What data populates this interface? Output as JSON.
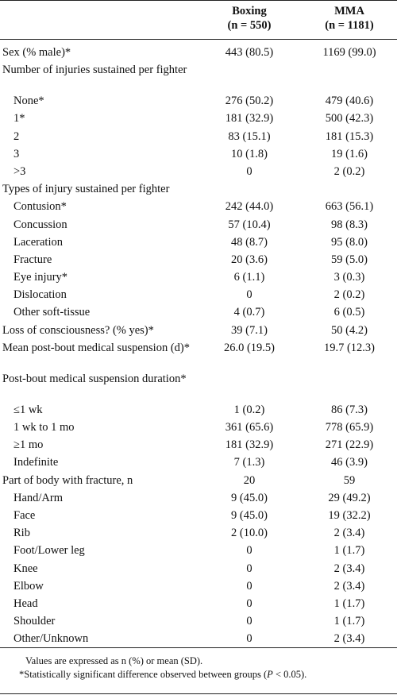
{
  "header": {
    "col1_line1": "Boxing",
    "col1_line2": "(n = 550)",
    "col2_line1": "MMA",
    "col2_line2": "(n = 1181)"
  },
  "rows": [
    {
      "label": "Sex (% male)*",
      "boxing": "443 (80.5)",
      "mma": "1169 (99.0)",
      "indent": false
    },
    {
      "label": "Number of injuries sustained per fighter",
      "boxing": "",
      "mma": "",
      "indent": false
    },
    {
      "label": "None*",
      "boxing": "276 (50.2)",
      "mma": "479 (40.6)",
      "indent": true
    },
    {
      "label": "1*",
      "boxing": "181 (32.9)",
      "mma": "500 (42.3)",
      "indent": true
    },
    {
      "label": "2",
      "boxing": "83 (15.1)",
      "mma": "181 (15.3)",
      "indent": true
    },
    {
      "label": "3",
      "boxing": "10 (1.8)",
      "mma": "19 (1.6)",
      "indent": true
    },
    {
      "label": ">3",
      "boxing": "0",
      "mma": "2 (0.2)",
      "indent": true
    },
    {
      "label": "Types of injury sustained per fighter",
      "boxing": "",
      "mma": "",
      "indent": false
    },
    {
      "label": "Contusion*",
      "boxing": "242 (44.0)",
      "mma": "663 (56.1)",
      "indent": true
    },
    {
      "label": "Concussion",
      "boxing": "57 (10.4)",
      "mma": "98 (8.3)",
      "indent": true
    },
    {
      "label": "Laceration",
      "boxing": "48 (8.7)",
      "mma": "95 (8.0)",
      "indent": true
    },
    {
      "label": "Fracture",
      "boxing": "20 (3.6)",
      "mma": "59 (5.0)",
      "indent": true
    },
    {
      "label": "Eye injury*",
      "boxing": "6 (1.1)",
      "mma": "3 (0.3)",
      "indent": true
    },
    {
      "label": "Dislocation",
      "boxing": "0",
      "mma": "2 (0.2)",
      "indent": true
    },
    {
      "label": "Other soft-tissue",
      "boxing": "4 (0.7)",
      "mma": "6 (0.5)",
      "indent": true
    },
    {
      "label": "Loss of consciousness? (% yes)*",
      "boxing": "39 (7.1)",
      "mma": "50 (4.2)",
      "indent": false
    },
    {
      "label": "Mean post-bout medical suspension (d)*",
      "boxing": "26.0 (19.5)",
      "mma": "19.7 (12.3)",
      "indent": false
    },
    {
      "label": "Post-bout medical suspension duration*",
      "boxing": "",
      "mma": "",
      "indent": false
    },
    {
      "label": "≤1 wk",
      "boxing": "1 (0.2)",
      "mma": "86 (7.3)",
      "indent": true
    },
    {
      "label": "1 wk to 1 mo",
      "boxing": "361 (65.6)",
      "mma": "778 (65.9)",
      "indent": true
    },
    {
      "label": "≥1 mo",
      "boxing": "181 (32.9)",
      "mma": "271 (22.9)",
      "indent": true
    },
    {
      "label": "Indefinite",
      "boxing": "7 (1.3)",
      "mma": "46 (3.9)",
      "indent": true
    },
    {
      "label": "Part of body with fracture, n",
      "boxing": "20",
      "mma": "59",
      "indent": false
    },
    {
      "label": "Hand/Arm",
      "boxing": "9 (45.0)",
      "mma": "29 (49.2)",
      "indent": true
    },
    {
      "label": "Face",
      "boxing": "9 (45.0)",
      "mma": "19 (32.2)",
      "indent": true
    },
    {
      "label": "Rib",
      "boxing": "2 (10.0)",
      "mma": "2 (3.4)",
      "indent": true
    },
    {
      "label": "Foot/Lower leg",
      "boxing": "0",
      "mma": "1 (1.7)",
      "indent": true
    },
    {
      "label": "Knee",
      "boxing": "0",
      "mma": "2 (3.4)",
      "indent": true
    },
    {
      "label": "Elbow",
      "boxing": "0",
      "mma": "2 (3.4)",
      "indent": true
    },
    {
      "label": "Head",
      "boxing": "0",
      "mma": "1 (1.7)",
      "indent": true
    },
    {
      "label": "Shoulder",
      "boxing": "0",
      "mma": "1 (1.7)",
      "indent": true
    },
    {
      "label": "Other/Unknown",
      "boxing": "0",
      "mma": "2 (3.4)",
      "indent": true
    }
  ],
  "footnotes": {
    "line1": "Values are expressed as n (%) or mean (SD).",
    "line2_pre": "*Statistically significant difference observed between groups (",
    "line2_p": "P",
    "line2_post": " < 0.05)."
  }
}
